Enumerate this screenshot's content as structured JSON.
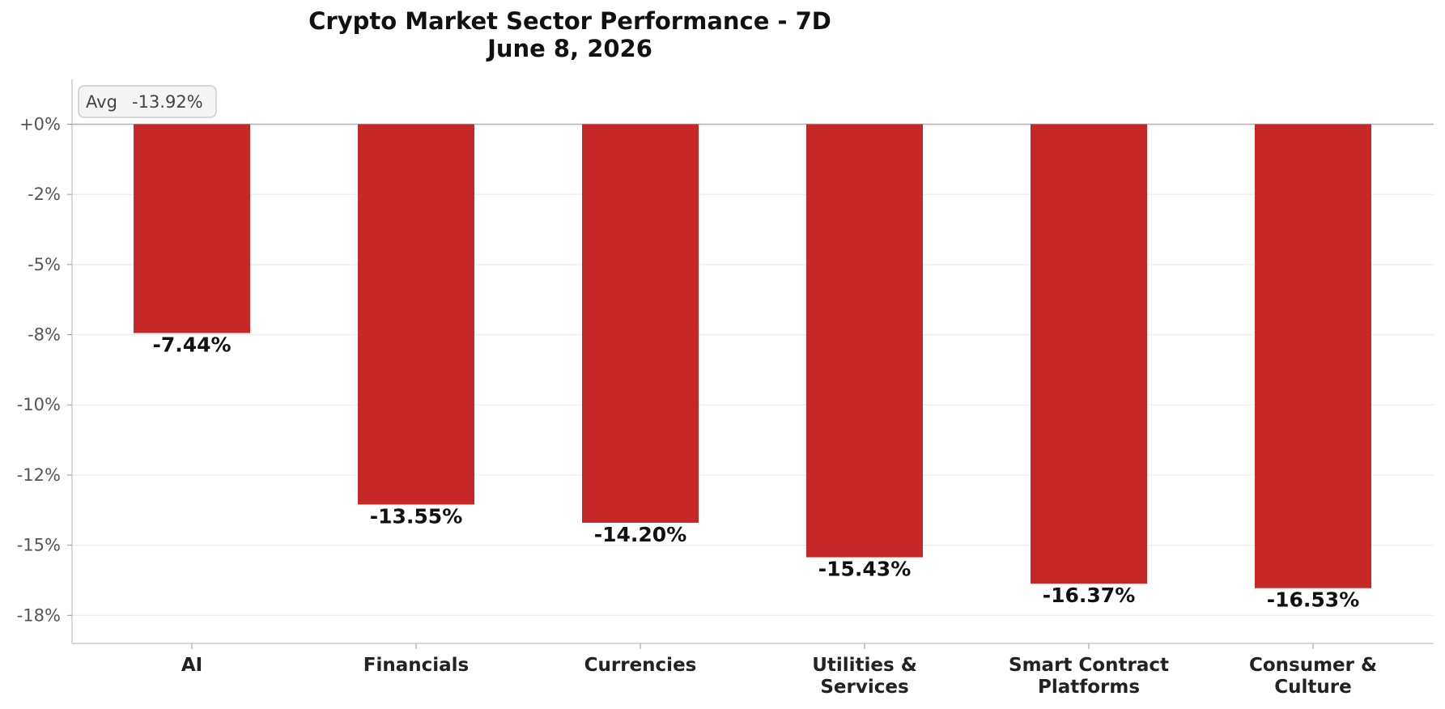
{
  "chart_data": {
    "type": "bar",
    "title": "Crypto Market Sector Performance - 7D",
    "subtitle": "June 8, 2026",
    "xlabel": "",
    "ylabel": "",
    "categories": [
      [
        "AI"
      ],
      [
        "Financials"
      ],
      [
        "Currencies"
      ],
      [
        "Utilities &",
        "Services"
      ],
      [
        "Smart Contract",
        "Platforms"
      ],
      [
        "Consumer &",
        "Culture"
      ]
    ],
    "values": [
      -7.44,
      -13.55,
      -14.2,
      -15.43,
      -16.37,
      -16.53
    ],
    "value_labels": [
      "-7.44%",
      "-13.55%",
      "-14.20%",
      "-15.43%",
      "-16.37%",
      "-16.53%"
    ],
    "ylim": [
      -18.5,
      1.6
    ],
    "ticks": [
      {
        "value": 0,
        "label": "+0%"
      },
      {
        "value": -2.5,
        "label": "-2%"
      },
      {
        "value": -5,
        "label": "-5%"
      },
      {
        "value": -7.5,
        "label": "-8%"
      },
      {
        "value": -10,
        "label": "-10%"
      },
      {
        "value": -12.5,
        "label": "-12%"
      },
      {
        "value": -15,
        "label": "-15%"
      },
      {
        "value": -17.5,
        "label": "-18%"
      }
    ],
    "grid": true,
    "annotation": {
      "label": "Avg",
      "value": "-13.92%",
      "placement": "top-left"
    },
    "colors": {
      "bar": "#c62828",
      "grid": "#ececec",
      "zero_line": "#b0b0b0",
      "axis": "#cccccc"
    }
  }
}
